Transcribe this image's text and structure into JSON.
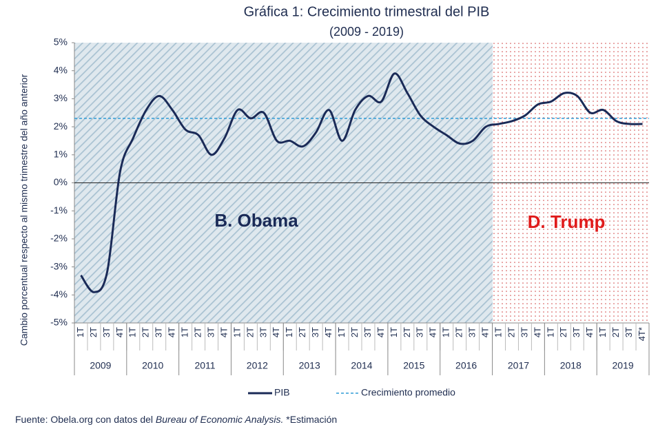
{
  "chart_data": {
    "type": "line",
    "title": "Gráfica 1: Crecimiento trimestral del PIB",
    "subtitle": "(2009 - 2019)",
    "y_label": "Cambio porcentual respecto al mismo trimestre del año anterior",
    "categories": [
      "1T",
      "2T",
      "3T",
      "4T",
      "1T",
      "2T",
      "3T",
      "4T",
      "1T",
      "2T",
      "3T",
      "4T",
      "1T",
      "2T",
      "3T",
      "4T",
      "1T",
      "2T",
      "3T",
      "4T",
      "1T",
      "2T",
      "3T",
      "4T",
      "1T",
      "2T",
      "3T",
      "4T",
      "1T",
      "2T",
      "3T",
      "4T",
      "1T",
      "2T",
      "3T",
      "4T",
      "1T",
      "2T",
      "3T",
      "4T",
      "1T",
      "2T",
      "3T",
      "4T*"
    ],
    "years": [
      "2009",
      "2010",
      "2011",
      "2012",
      "2013",
      "2014",
      "2015",
      "2016",
      "2017",
      "2018",
      "2019"
    ],
    "series": [
      {
        "name": "PIB",
        "color": "#1a2a57",
        "values": [
          -3.3,
          -3.9,
          -3.2,
          0.4,
          1.6,
          2.6,
          3.1,
          2.6,
          1.9,
          1.7,
          1.0,
          1.6,
          2.6,
          2.3,
          2.5,
          1.5,
          1.5,
          1.3,
          1.8,
          2.6,
          1.5,
          2.6,
          3.1,
          2.9,
          3.9,
          3.2,
          2.4,
          2.0,
          1.7,
          1.4,
          1.5,
          2.0,
          2.1,
          2.2,
          2.4,
          2.8,
          2.9,
          3.2,
          3.1,
          2.5,
          2.6,
          2.2,
          2.1,
          2.1
        ]
      }
    ],
    "average": {
      "name": "Crecimiento promedio",
      "value": 2.3,
      "color": "#2e9bd6"
    },
    "annotations": [
      {
        "text": "B. Obama",
        "color": "#1a2a57"
      },
      {
        "text": "D. Trump",
        "color": "#e01b1b"
      }
    ],
    "ylim": [
      -5,
      5
    ],
    "yticks": [
      {
        "value": -5,
        "label": "-5%"
      },
      {
        "value": -4,
        "label": "-4%"
      },
      {
        "value": -3,
        "label": "-3%"
      },
      {
        "value": -2,
        "label": "-2%"
      },
      {
        "value": -1,
        "label": "-1%"
      },
      {
        "value": 0,
        "label": "0%"
      },
      {
        "value": 1,
        "label": "1%"
      },
      {
        "value": 2,
        "label": "2%"
      },
      {
        "value": 3,
        "label": "3%"
      },
      {
        "value": 4,
        "label": "4%"
      },
      {
        "value": 5,
        "label": "5%"
      }
    ],
    "source": [
      "Fuente: Obela.org con datos del ",
      "Bureau of Economic Analysis.",
      " *Estimación"
    ]
  }
}
